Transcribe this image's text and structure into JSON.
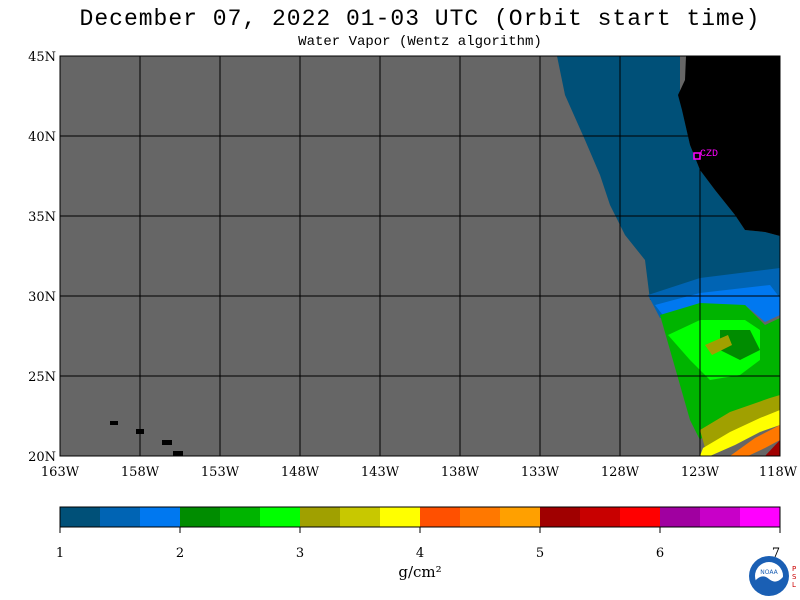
{
  "title": "December 07, 2022  01-03 UTC  (Orbit start time)",
  "subtitle": "Water Vapor (Wentz algorithm)",
  "lat_labels": [
    "45N",
    "40N",
    "35N",
    "30N",
    "25N",
    "20N"
  ],
  "lon_labels": [
    "163W",
    "158W",
    "153W",
    "148W",
    "143W",
    "138W",
    "133W",
    "128W",
    "123W",
    "118W"
  ],
  "station_label": "CZD",
  "colorbar": {
    "labels": [
      "1",
      "2",
      "3",
      "4",
      "5",
      "6",
      "7"
    ],
    "units": "g/cm²",
    "colors": [
      "#005078",
      "#0064b4",
      "#0078f0",
      "#008c00",
      "#00b400",
      "#00ff00",
      "#a0a000",
      "#c8c800",
      "#ffff00",
      "#ff5000",
      "#ff7800",
      "#ffa000",
      "#a00000",
      "#c80000",
      "#ff0000",
      "#a000a0",
      "#c800c8",
      "#ff00ff"
    ]
  },
  "map_colors": {
    "no_data": "#666666",
    "land": "#000000",
    "grid": "#000000",
    "station": "#ff00ff"
  },
  "logo": {
    "agency_text": "NOAA",
    "lab_text": "PSL"
  }
}
